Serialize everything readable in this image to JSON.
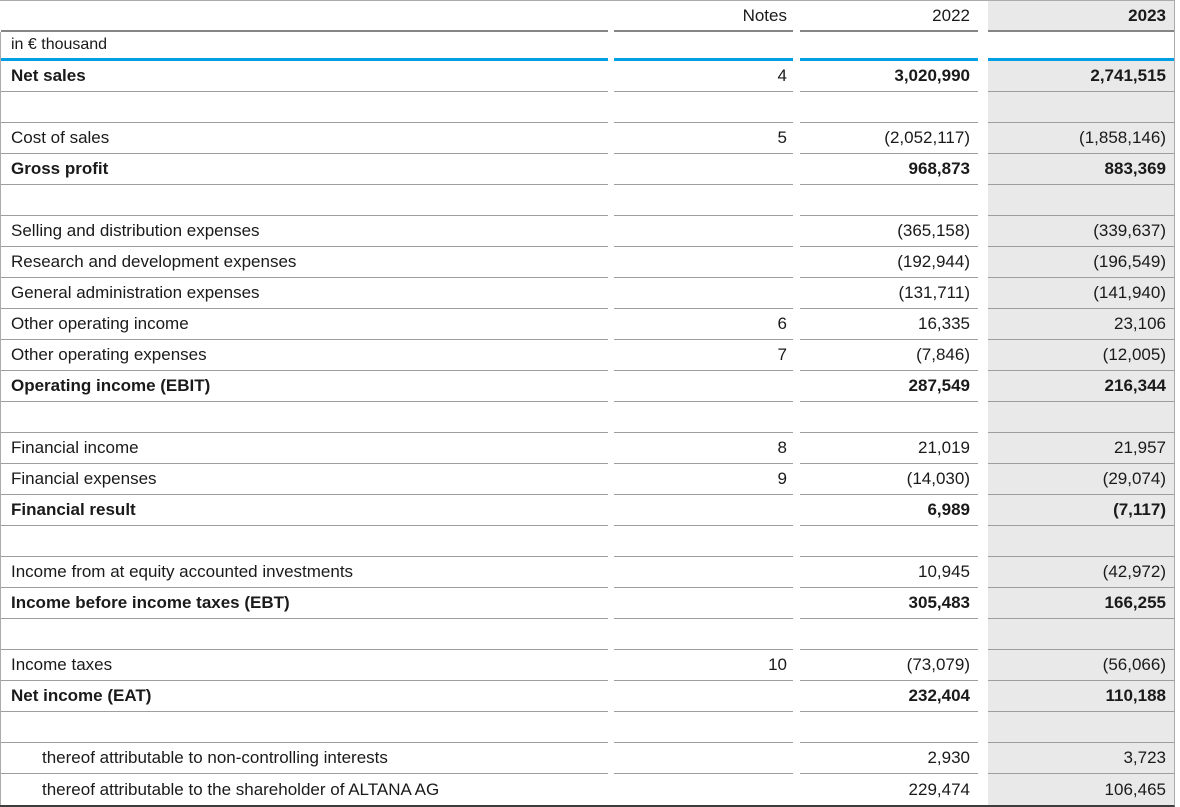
{
  "table": {
    "unit_label": "in € thousand",
    "header": {
      "notes": "Notes",
      "y2022": "2022",
      "y2023": "2023"
    },
    "rows": [
      {
        "label": "Net sales",
        "notes": "4",
        "y2022": "3,020,990",
        "y2023": "2,741,515",
        "bold": true
      },
      {
        "spacer": true
      },
      {
        "label": "Cost of sales",
        "notes": "5",
        "y2022": "(2,052,117)",
        "y2023": "(1,858,146)"
      },
      {
        "label": "Gross profit",
        "y2022": "968,873",
        "y2023": "883,369",
        "bold": true
      },
      {
        "spacer": true
      },
      {
        "label": "Selling and distribution expenses",
        "y2022": "(365,158)",
        "y2023": "(339,637)"
      },
      {
        "label": "Research and development expenses",
        "y2022": "(192,944)",
        "y2023": "(196,549)"
      },
      {
        "label": "General administration expenses",
        "y2022": "(131,711)",
        "y2023": "(141,940)"
      },
      {
        "label": "Other operating income",
        "notes": "6",
        "y2022": "16,335",
        "y2023": "23,106"
      },
      {
        "label": "Other operating expenses",
        "notes": "7",
        "y2022": "(7,846)",
        "y2023": "(12,005)"
      },
      {
        "label": "Operating income (EBIT)",
        "y2022": "287,549",
        "y2023": "216,344",
        "bold": true
      },
      {
        "spacer": true
      },
      {
        "label": "Financial income",
        "notes": "8",
        "y2022": "21,019",
        "y2023": "21,957"
      },
      {
        "label": "Financial expenses",
        "notes": "9",
        "y2022": "(14,030)",
        "y2023": "(29,074)"
      },
      {
        "label": "Financial result",
        "y2022": "6,989",
        "y2023": "(7,117)",
        "bold": true
      },
      {
        "spacer": true
      },
      {
        "label": "Income from at equity accounted investments",
        "y2022": "10,945",
        "y2023": "(42,972)"
      },
      {
        "label": "Income before income taxes (EBT)",
        "y2022": "305,483",
        "y2023": "166,255",
        "bold": true
      },
      {
        "spacer": true
      },
      {
        "label": "Income taxes",
        "notes": "10",
        "y2022": "(73,079)",
        "y2023": "(56,066)"
      },
      {
        "label": "Net income (EAT)",
        "y2022": "232,404",
        "y2023": "110,188",
        "bold": true
      },
      {
        "spacer": true
      },
      {
        "label": "thereof attributable to non-controlling interests",
        "y2022": "2,930",
        "y2023": "3,723",
        "indent": true
      },
      {
        "label": "thereof attributable to the shareholder of ALTANA AG",
        "y2022": "229,474",
        "y2023": "106,465",
        "indent": true
      }
    ],
    "colors": {
      "accent_blue": "#009fe3",
      "highlight_column_bg": "#e9e9e9",
      "row_line": "#9e9e9e",
      "header_line": "#858585",
      "outer_border": "#ababab",
      "bottom_line": "#3d3d3d"
    }
  }
}
